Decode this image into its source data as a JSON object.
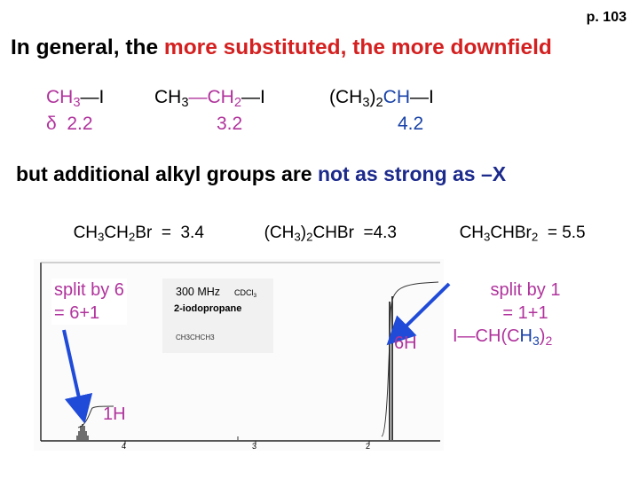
{
  "page_number": "p. 103",
  "title": {
    "prefix": "In general, the ",
    "highlight": "more substituted, the more downfield"
  },
  "compounds_row1": [
    {
      "formula_a": "CH",
      "sub_a": "3",
      "rest": "—I",
      "shift": "δ  2.2"
    },
    {
      "formula_a": "CH",
      "sub_a": "3",
      "mid": "—CH",
      "sub_b": "2",
      "rest": "—I",
      "shift": "3.2"
    },
    {
      "formula_a": "(CH",
      "sub_a": "3",
      "mid": ")",
      "sub_b": "2",
      "rest_a": "CH",
      "rest": "—I",
      "shift": "4.2"
    }
  ],
  "subtitle": {
    "prefix": "but additional alkyl groups are ",
    "highlight": "not as strong as –X"
  },
  "compounds_row2": [
    {
      "t1": "CH",
      "s1": "3",
      "t2": "CH",
      "s2": "2",
      "t3": "Br  =  3.4"
    },
    {
      "t1": "(CH",
      "s1": "3",
      "t2": ")",
      "s2": "2",
      "t3": "CHBr  =4.3"
    },
    {
      "t1": "CH",
      "s1": "3",
      "t2": "CHBr",
      "s2": "2",
      "t3": "  = 5.5"
    }
  ],
  "spectrum": {
    "info_freq": "300 MHz",
    "info_solvent": "CDCl",
    "info_solvent_sub": "3",
    "info_name": "2-iodopropane",
    "structure_label": "CH3CHCH3",
    "axis_ticks": [
      "4",
      "3",
      "2"
    ]
  },
  "annotations": {
    "split_left_line1": "split by 6",
    "split_left_line2": "= 6+1",
    "label_1h": "1H",
    "label_6h": "6H",
    "split_right_line1": "split by 1",
    "split_right_line2": "= 1+1",
    "right_formula_a": "I—CH(C",
    "right_formula_h": "H",
    "right_formula_sub_a": "3",
    "right_formula_b": ")",
    "right_formula_sub_b": "2"
  },
  "colors": {
    "red": "#d42020",
    "magenta": "#b0339c",
    "blue": "#1a43a8",
    "navy": "#1c2a8c",
    "arrow": "#1f4bd8"
  }
}
